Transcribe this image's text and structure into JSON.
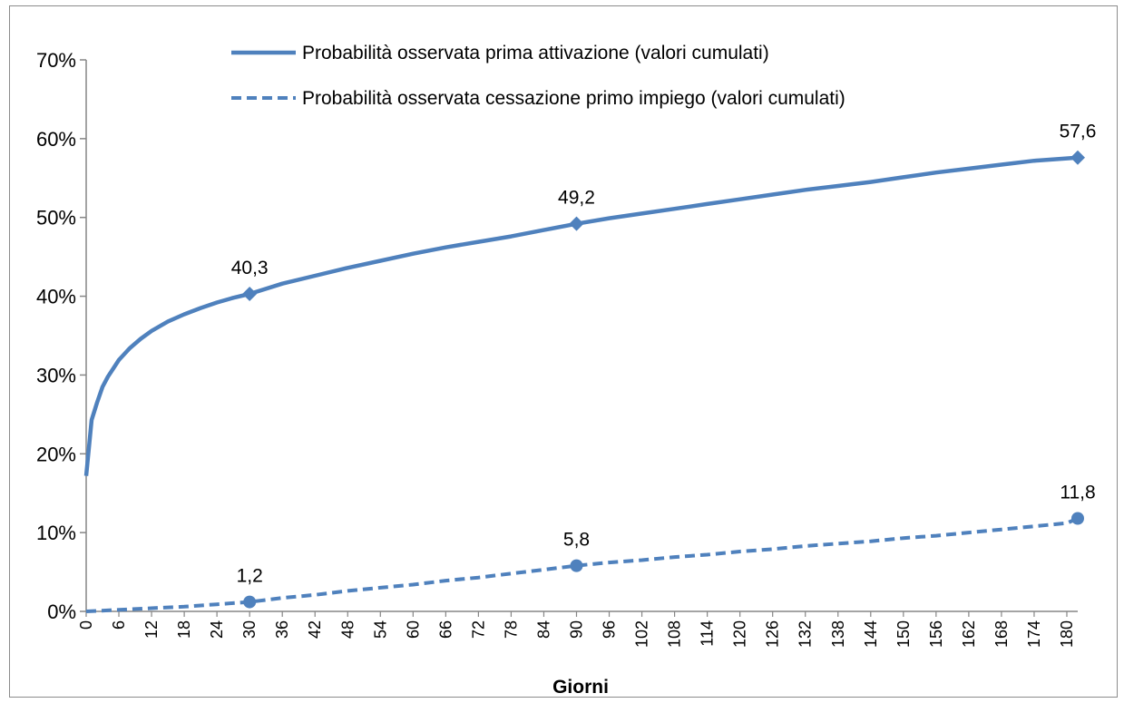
{
  "chart_data": {
    "type": "line",
    "xlabel": "Giorni",
    "ylabel": "",
    "xlim": [
      0,
      182
    ],
    "ylim": [
      0,
      70
    ],
    "y_ticks": [
      0,
      10,
      20,
      30,
      40,
      50,
      60,
      70
    ],
    "y_tick_labels": [
      "0%",
      "10%",
      "20%",
      "30%",
      "40%",
      "50%",
      "60%",
      "70%"
    ],
    "x_ticks": [
      0,
      6,
      12,
      18,
      24,
      30,
      36,
      42,
      48,
      54,
      60,
      66,
      72,
      78,
      84,
      90,
      96,
      102,
      108,
      114,
      120,
      126,
      132,
      138,
      144,
      150,
      156,
      162,
      168,
      174,
      180
    ],
    "grid": false,
    "legend_position": "top",
    "series": [
      {
        "name": "Probabilità osservata prima attivazione (valori cumulati)",
        "style": "solid",
        "color": "#4f81bd",
        "marker": "diamond",
        "x": [
          0,
          1,
          2,
          3,
          4,
          6,
          8,
          10,
          12,
          15,
          18,
          21,
          24,
          27,
          30,
          36,
          42,
          48,
          54,
          60,
          66,
          72,
          78,
          84,
          90,
          96,
          102,
          108,
          114,
          120,
          126,
          132,
          138,
          144,
          150,
          156,
          162,
          168,
          174,
          180,
          182
        ],
        "y": [
          17.2,
          24.3,
          26.5,
          28.5,
          29.8,
          31.9,
          33.4,
          34.6,
          35.6,
          36.8,
          37.7,
          38.5,
          39.2,
          39.8,
          40.3,
          41.6,
          42.6,
          43.6,
          44.5,
          45.4,
          46.2,
          46.9,
          47.6,
          48.4,
          49.2,
          49.9,
          50.5,
          51.1,
          51.7,
          52.3,
          52.9,
          53.5,
          54.0,
          54.5,
          55.1,
          55.7,
          56.2,
          56.7,
          57.2,
          57.5,
          57.6
        ],
        "labeled_points": [
          {
            "x": 30,
            "y": 40.3,
            "label": "40,3"
          },
          {
            "x": 90,
            "y": 49.2,
            "label": "49,2"
          },
          {
            "x": 182,
            "y": 57.6,
            "label": "57,6"
          }
        ]
      },
      {
        "name": "Probabilità osservata cessazione primo impiego (valori cumulati)",
        "style": "dashed",
        "color": "#4f81bd",
        "marker": "circle",
        "x": [
          0,
          6,
          12,
          18,
          24,
          30,
          36,
          42,
          48,
          54,
          60,
          66,
          72,
          78,
          84,
          90,
          96,
          102,
          108,
          114,
          120,
          126,
          132,
          138,
          144,
          150,
          156,
          162,
          168,
          174,
          180,
          182
        ],
        "y": [
          0.0,
          0.2,
          0.4,
          0.6,
          0.9,
          1.2,
          1.7,
          2.1,
          2.6,
          3.0,
          3.4,
          3.9,
          4.3,
          4.8,
          5.3,
          5.8,
          6.2,
          6.5,
          6.9,
          7.2,
          7.6,
          7.9,
          8.3,
          8.6,
          8.9,
          9.3,
          9.6,
          10.0,
          10.4,
          10.8,
          11.2,
          11.8
        ],
        "labeled_points": [
          {
            "x": 30,
            "y": 1.2,
            "label": "1,2"
          },
          {
            "x": 90,
            "y": 5.8,
            "label": "5,8"
          },
          {
            "x": 182,
            "y": 11.8,
            "label": "11,8"
          }
        ]
      }
    ]
  }
}
